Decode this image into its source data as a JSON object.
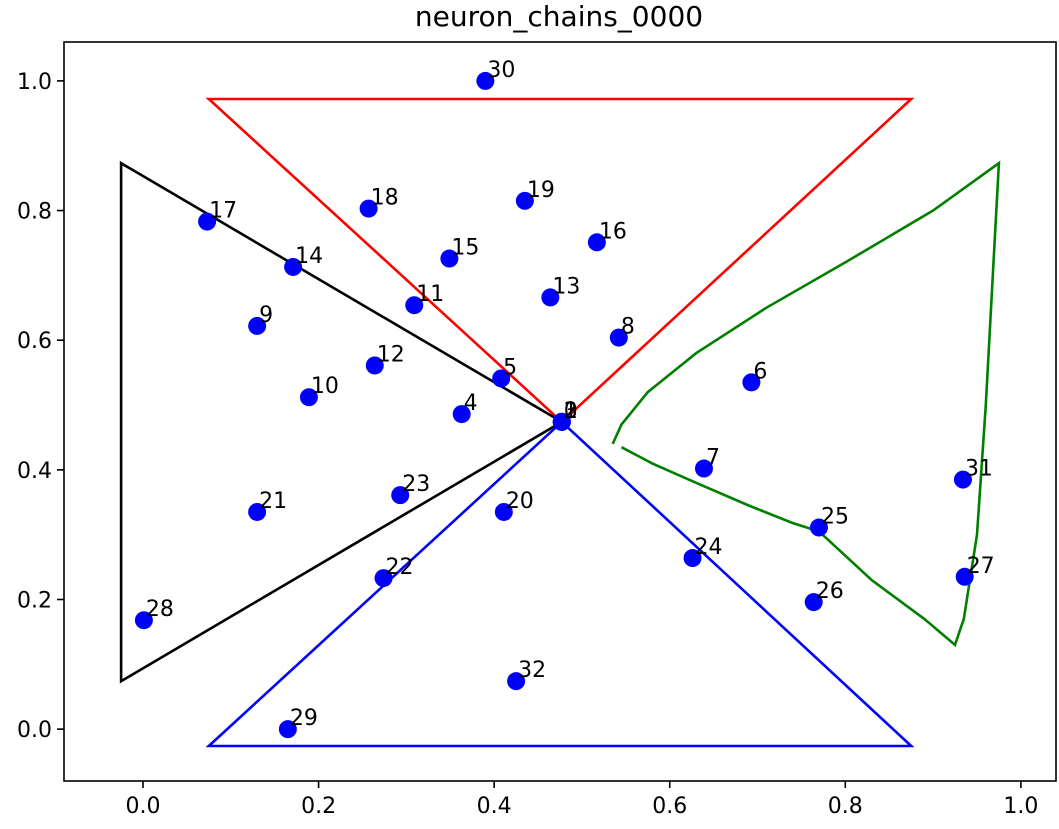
{
  "chart_data": {
    "type": "scatter",
    "title": "neuron_chains_0000",
    "xlabel": "",
    "ylabel": "",
    "xlim": [
      -0.09,
      1.04
    ],
    "ylim": [
      -0.08,
      1.06
    ],
    "x_ticks": [
      0.0,
      0.2,
      0.4,
      0.6,
      0.8,
      1.0
    ],
    "x_tick_labels": [
      "0.0",
      "0.2",
      "0.4",
      "0.6",
      "0.8",
      "1.0"
    ],
    "y_ticks": [
      0.0,
      0.2,
      0.4,
      0.6,
      0.8,
      1.0
    ],
    "y_tick_labels": [
      "0.0",
      "0.2",
      "0.4",
      "0.6",
      "0.8",
      "1.0"
    ],
    "grid": false,
    "point_color": "#0000ff",
    "points": [
      {
        "label": "0",
        "x": 0.477,
        "y": 0.474
      },
      {
        "label": "1",
        "x": 0.477,
        "y": 0.474
      },
      {
        "label": "2",
        "x": 0.477,
        "y": 0.474
      },
      {
        "label": "3",
        "x": 0.477,
        "y": 0.474
      },
      {
        "label": "4",
        "x": 0.363,
        "y": 0.486
      },
      {
        "label": "5",
        "x": 0.408,
        "y": 0.541
      },
      {
        "label": "6",
        "x": 0.693,
        "y": 0.535
      },
      {
        "label": "7",
        "x": 0.639,
        "y": 0.402
      },
      {
        "label": "8",
        "x": 0.542,
        "y": 0.604
      },
      {
        "label": "9",
        "x": 0.13,
        "y": 0.622
      },
      {
        "label": "10",
        "x": 0.189,
        "y": 0.512
      },
      {
        "label": "11",
        "x": 0.309,
        "y": 0.654
      },
      {
        "label": "12",
        "x": 0.264,
        "y": 0.561
      },
      {
        "label": "13",
        "x": 0.464,
        "y": 0.666
      },
      {
        "label": "14",
        "x": 0.171,
        "y": 0.713
      },
      {
        "label": "15",
        "x": 0.349,
        "y": 0.726
      },
      {
        "label": "16",
        "x": 0.517,
        "y": 0.751
      },
      {
        "label": "17",
        "x": 0.073,
        "y": 0.783
      },
      {
        "label": "18",
        "x": 0.257,
        "y": 0.803
      },
      {
        "label": "19",
        "x": 0.435,
        "y": 0.815
      },
      {
        "label": "20",
        "x": 0.411,
        "y": 0.335
      },
      {
        "label": "21",
        "x": 0.13,
        "y": 0.335
      },
      {
        "label": "22",
        "x": 0.274,
        "y": 0.233
      },
      {
        "label": "23",
        "x": 0.293,
        "y": 0.361
      },
      {
        "label": "24",
        "x": 0.626,
        "y": 0.264
      },
      {
        "label": "25",
        "x": 0.77,
        "y": 0.311
      },
      {
        "label": "26",
        "x": 0.764,
        "y": 0.196
      },
      {
        "label": "27",
        "x": 0.936,
        "y": 0.235
      },
      {
        "label": "28",
        "x": 0.001,
        "y": 0.168
      },
      {
        "label": "29",
        "x": 0.165,
        "y": 0.0
      },
      {
        "label": "30",
        "x": 0.39,
        "y": 1.0
      },
      {
        "label": "31",
        "x": 0.934,
        "y": 0.385
      },
      {
        "label": "32",
        "x": 0.425,
        "y": 0.074
      }
    ],
    "series": [
      {
        "color": "#ff0000",
        "x": [
          0.477,
          0.075,
          0.875,
          0.477
        ],
        "y": [
          0.474,
          0.972,
          0.972,
          0.474
        ]
      },
      {
        "color": "#000000",
        "x": [
          0.477,
          -0.025,
          -0.025,
          0.477
        ],
        "y": [
          0.474,
          0.873,
          0.074,
          0.474
        ]
      },
      {
        "color": "#0000ff",
        "x": [
          0.477,
          0.075,
          0.875,
          0.477
        ],
        "y": [
          0.474,
          -0.026,
          -0.026,
          0.474
        ]
      },
      {
        "color": "#008000",
        "x": [
          0.535,
          0.545,
          0.575,
          0.63,
          0.71,
          0.8,
          0.9,
          0.975,
          0.968,
          0.96,
          0.95,
          0.935,
          0.925,
          0.89,
          0.83,
          0.79,
          0.77,
          0.74,
          0.69,
          0.63,
          0.58,
          0.545
        ],
        "y": [
          0.44,
          0.47,
          0.52,
          0.58,
          0.65,
          0.72,
          0.8,
          0.873,
          0.7,
          0.5,
          0.3,
          0.17,
          0.13,
          0.17,
          0.23,
          0.28,
          0.305,
          0.318,
          0.345,
          0.38,
          0.41,
          0.435
        ]
      }
    ]
  }
}
